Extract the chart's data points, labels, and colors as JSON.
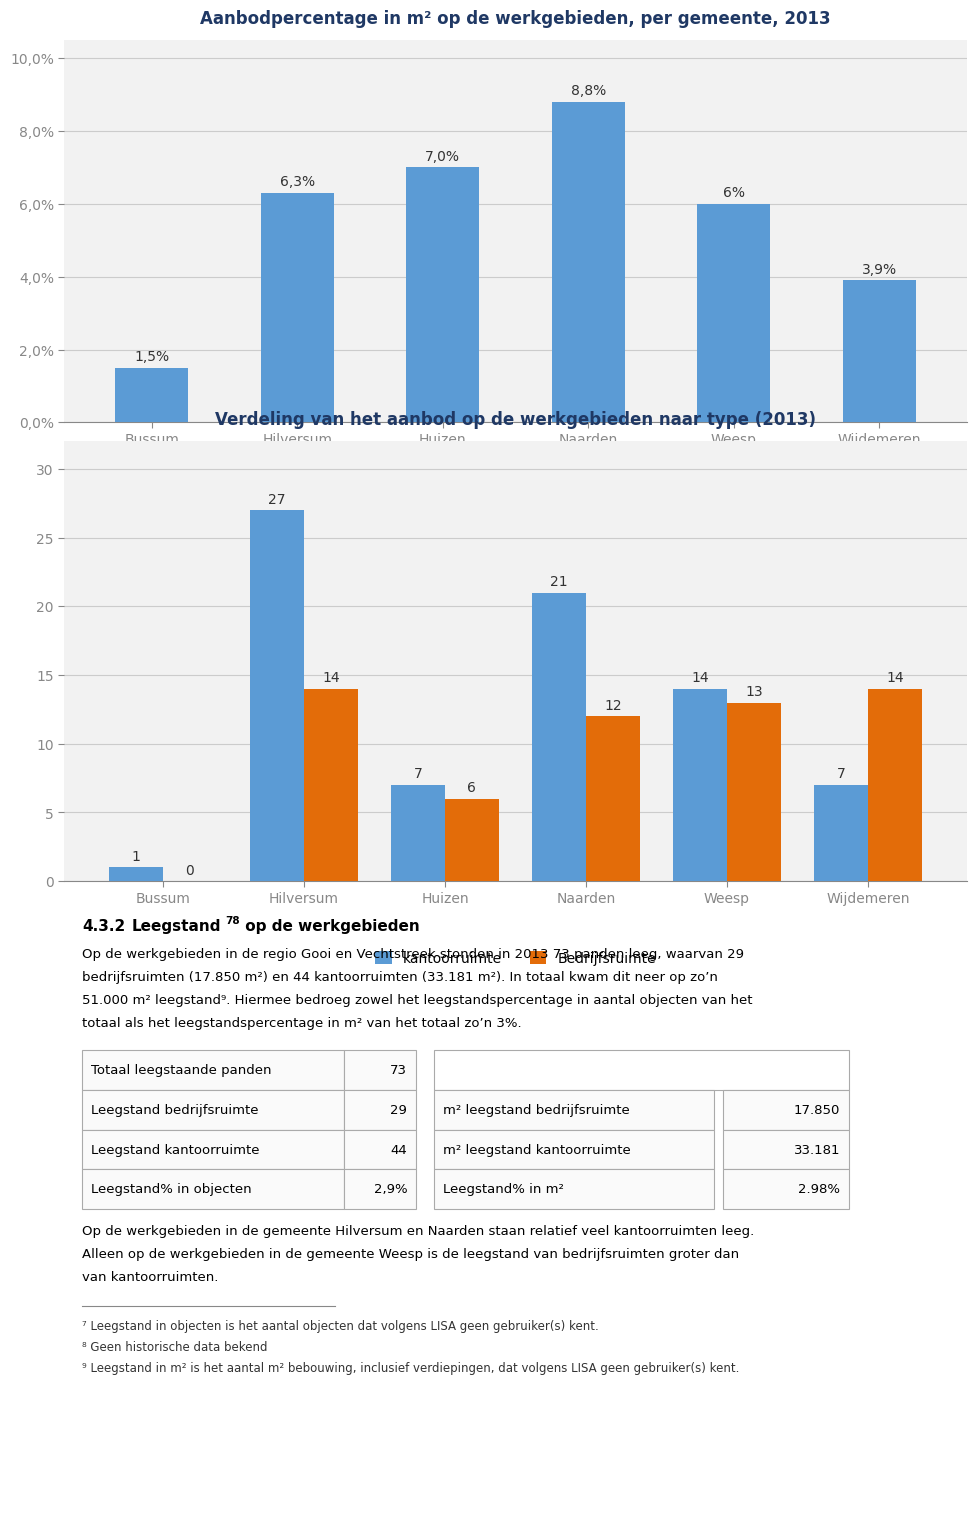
{
  "chart1": {
    "title": "Aanbodpercentage in m² op de werkgebieden, per gemeente, 2013",
    "categories": [
      "Bussum",
      "Hilversum",
      "Huizen",
      "Naarden",
      "Weesp",
      "Wijdemeren"
    ],
    "values": [
      1.5,
      6.3,
      7.0,
      8.8,
      6.0,
      3.9
    ],
    "labels": [
      "1,5%",
      "6,3%",
      "7,0%",
      "8,8%",
      "6%",
      "3,9%"
    ],
    "bar_color": "#5B9BD5",
    "ylim": [
      0,
      10.5
    ],
    "yticks": [
      0.0,
      2.0,
      4.0,
      6.0,
      8.0,
      10.0
    ],
    "ytick_labels": [
      "0,0%",
      "2,0%",
      "4,0%",
      "6,0%",
      "8,0%",
      "10,0%"
    ]
  },
  "chart2": {
    "title": "Verdeling van het aanbod op de werkgebieden naar type (2013)",
    "categories": [
      "Bussum",
      "Hilversum",
      "Huizen",
      "Naarden",
      "Weesp",
      "Wijdemeren"
    ],
    "kantoor": [
      1,
      27,
      7,
      21,
      14,
      7
    ],
    "bedrijf": [
      0,
      14,
      6,
      12,
      13,
      14
    ],
    "kantoor_color": "#5B9BD5",
    "bedrijf_color": "#E36C09",
    "ylim": [
      0,
      32
    ],
    "yticks": [
      0,
      5,
      10,
      15,
      20,
      25,
      30
    ],
    "legend_kantoor": "kantoorruimte",
    "legend_bedrijf": "Bedrijfsruimte"
  },
  "text_section": {
    "heading_number": "4.3.2",
    "heading_bold": "Leegstand",
    "heading_super": "78",
    "heading_rest": " op de werkgebieden",
    "paragraph1_lines": [
      "Op de werkgebieden in de regio Gooi en Vechtstreek stonden in 2013 73 panden leeg, waarvan 29",
      "bedrijfsruimten (17.850 m²) en 44 kantoorruimten (33.181 m²). In totaal kwam dit neer op zo’n",
      "51.000 m² leegstand⁹. Hiermee bedroeg zowel het leegstandspercentage in aantal objecten van het",
      "totaal als het leegstandspercentage in m² van het totaal zo’n 3%."
    ],
    "table_rows": [
      [
        "Totaal leegstaande panden",
        "73",
        "",
        ""
      ],
      [
        "Leegstand bedrijfsruimte",
        "29",
        "m² leegstand bedrijfsruimte",
        "17.850"
      ],
      [
        "Leegstand kantoorruimte",
        "44",
        "m² leegstand kantoorruimte",
        "33.181"
      ],
      [
        "Leegstand% in objecten",
        "2,9%",
        "Leegstand% in m²",
        "2.98%"
      ]
    ],
    "paragraph2_lines": [
      "Op de werkgebieden in de gemeente Hilversum en Naarden staan relatief veel kantoorruimten leeg.",
      "Alleen op de werkgebieden in de gemeente Weesp is de leegstand van bedrijfsruimten groter dan",
      "van kantoorruimten."
    ],
    "footnotes": [
      "⁷ Leegstand in objecten is het aantal objecten dat volgens LISA geen gebruiker(s) kent.",
      "⁸ Geen historische data bekend",
      "⁹ Leegstand in m² is het aantal m² bebouwing, inclusief verdiepingen, dat volgens LISA geen gebruiker(s) kent."
    ]
  },
  "background_color": "#FFFFFF",
  "box_color": "#F2F2F2",
  "title_color": "#1F3864",
  "grid_color": "#CCCCCC"
}
